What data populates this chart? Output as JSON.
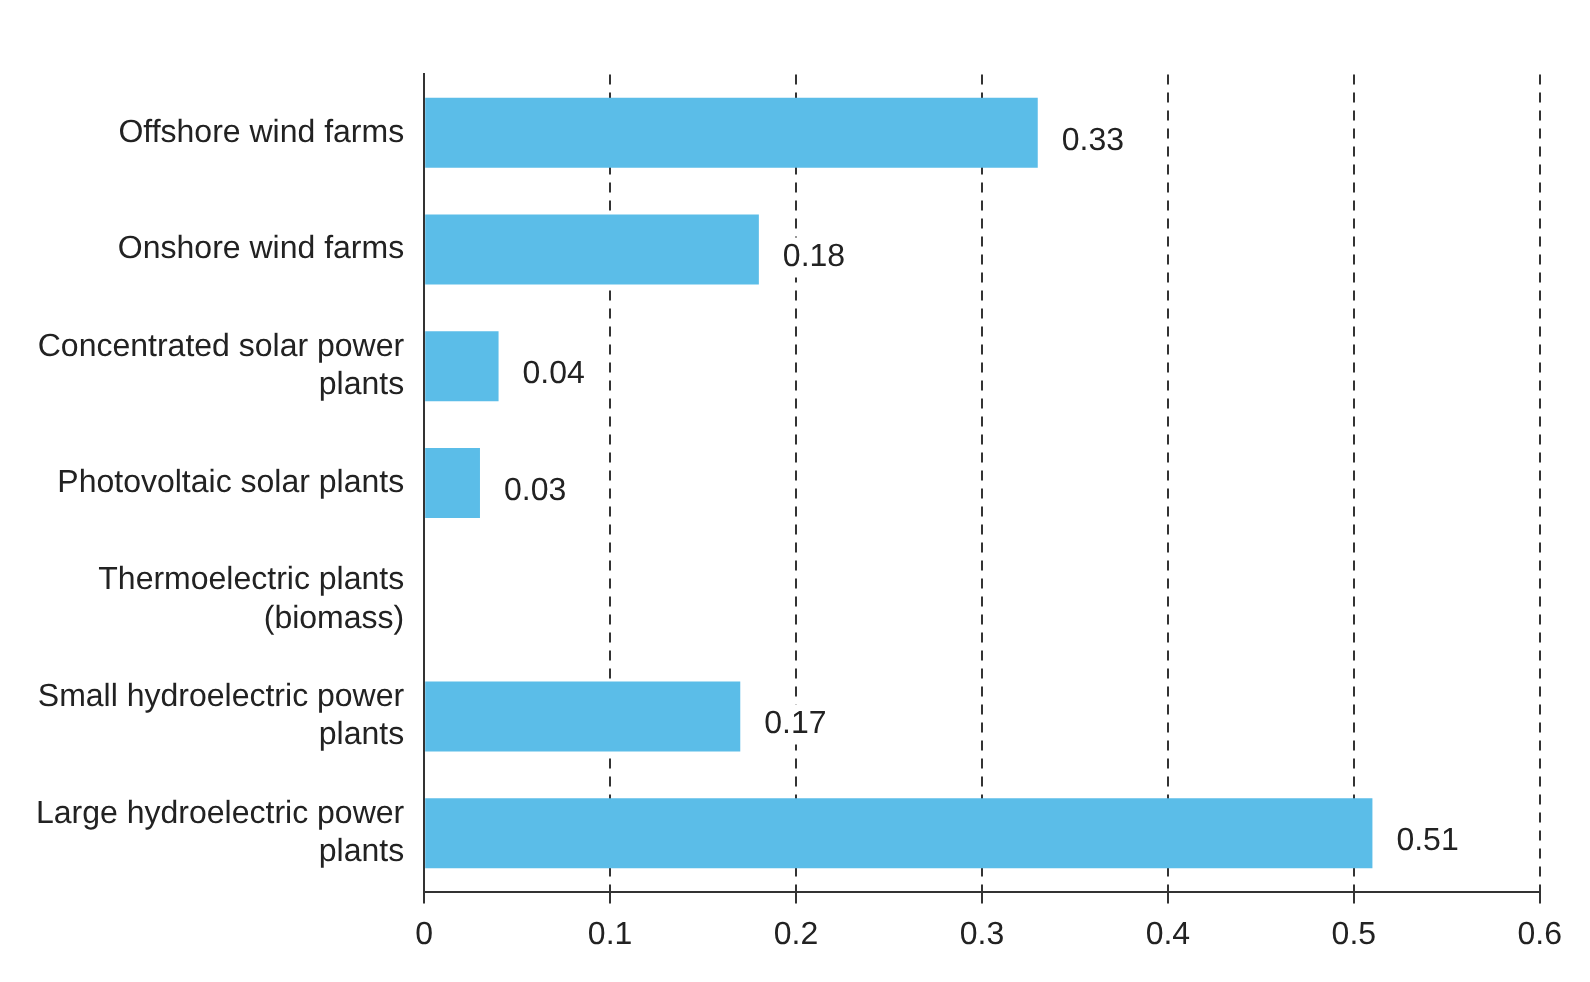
{
  "chart_data": {
    "type": "bar",
    "orientation": "horizontal",
    "categories": [
      "Offshore wind farms",
      "Onshore wind farms",
      "Concentrated solar power plants",
      "Photovoltaic solar plants",
      "Thermoelectric plants (biomass)",
      "Small hydroelectric power plants",
      "Large hydroelectric power plants"
    ],
    "values": [
      0.33,
      0.18,
      0.04,
      0.03,
      null,
      0.17,
      0.51
    ],
    "color": "#5bbde8",
    "xlim": [
      0,
      0.6
    ],
    "xticks": [
      0,
      0.1,
      0.2,
      0.3,
      0.4,
      0.5,
      0.6
    ],
    "grid": "x",
    "line_style": "dashed",
    "data_labels": true,
    "legend": false
  }
}
